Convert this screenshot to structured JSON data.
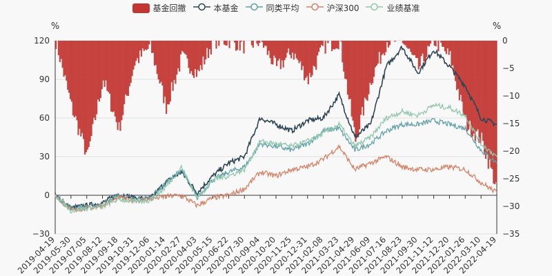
{
  "chart_data": {
    "type": "line",
    "legend": [
      {
        "name": "基金回撤",
        "kind": "bar",
        "color": "#c23531"
      },
      {
        "name": "本基金",
        "kind": "line",
        "color": "#2f4554"
      },
      {
        "name": "同类平均",
        "kind": "line",
        "color": "#61a0a8"
      },
      {
        "name": "沪深300",
        "kind": "line",
        "color": "#d48265"
      },
      {
        "name": "业绩基准",
        "kind": "line",
        "color": "#91c7ae"
      }
    ],
    "y_left": {
      "unit": "%",
      "min": -30,
      "max": 120,
      "ticks": [
        -30,
        0,
        30,
        60,
        90,
        120
      ]
    },
    "y_right": {
      "unit": "%",
      "min": -35,
      "max": 0,
      "ticks": [
        0,
        -5,
        -10,
        -15,
        -20,
        -25,
        -30,
        -35
      ]
    },
    "x_ticks": [
      "2019-04-19",
      "2019-05-30",
      "2019-07-05",
      "2019-08-12",
      "2019-09-18",
      "2019-10-31",
      "2019-12-06",
      "2020-01-14",
      "2020-02-27",
      "2020-04-03",
      "2020-05-15",
      "2020-06-22",
      "2020-07-30",
      "2020-09-04",
      "2020-10-20",
      "2020-11-25",
      "2020-12-31",
      "2021-02-08",
      "2021-03-23",
      "2021-04-29",
      "2021-06-09",
      "2021-07-16",
      "2021-08-23",
      "2021-09-30",
      "2021-11-12",
      "2021-12-20",
      "2022-01-26",
      "2022-03-10",
      "2022-04-19"
    ],
    "series": [
      {
        "name": "本基金",
        "anchors": [
          0,
          -10,
          -8,
          -6,
          1,
          -2,
          -3,
          10,
          18,
          2,
          15,
          25,
          30,
          60,
          55,
          50,
          58,
          60,
          78,
          45,
          55,
          100,
          115,
          95,
          113,
          100,
          85,
          60,
          55
        ]
      },
      {
        "name": "同类平均",
        "anchors": [
          0,
          -10,
          -9,
          -7,
          0,
          -3,
          -2,
          9,
          20,
          -2,
          12,
          18,
          22,
          40,
          38,
          35,
          40,
          50,
          52,
          35,
          40,
          50,
          55,
          55,
          58,
          55,
          52,
          35,
          25
        ]
      },
      {
        "name": "沪深300",
        "anchors": [
          0,
          -12,
          -10,
          -8,
          -2,
          -4,
          -3,
          -1,
          0,
          -8,
          -2,
          0,
          5,
          18,
          15,
          20,
          22,
          28,
          38,
          20,
          25,
          30,
          22,
          20,
          20,
          22,
          20,
          10,
          2
        ]
      },
      {
        "name": "业绩基准",
        "anchors": [
          0,
          -12,
          -10,
          -9,
          -3,
          -5,
          -4,
          6,
          22,
          -2,
          12,
          15,
          20,
          42,
          40,
          38,
          42,
          48,
          55,
          38,
          45,
          60,
          65,
          62,
          70,
          68,
          62,
          40,
          30
        ]
      },
      {
        "name": "基金回撤",
        "anchors": [
          0,
          -12,
          -21,
          -7,
          -16,
          -4,
          -1,
          -12,
          -3,
          -6,
          0,
          0,
          -1,
          0,
          -5,
          -2,
          -7,
          -1,
          0,
          -18,
          -7,
          0,
          0,
          -5,
          0,
          -3,
          -15,
          -18,
          -27
        ]
      }
    ]
  }
}
